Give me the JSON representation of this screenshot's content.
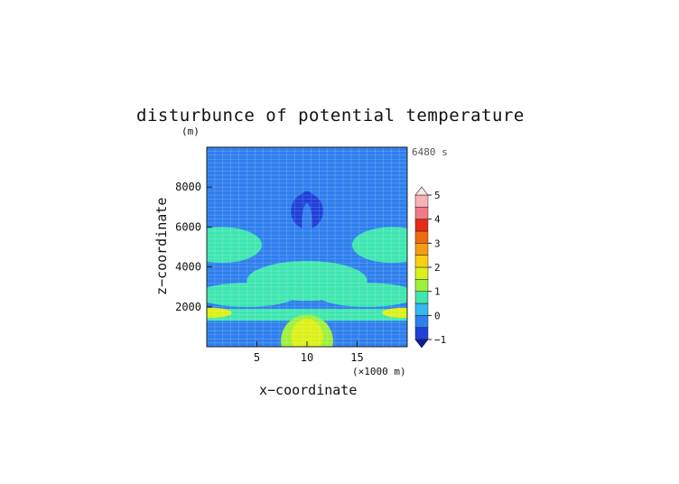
{
  "chart_data": {
    "type": "heatmap",
    "title": "disturbunce of potential temperature",
    "units_label": "(m)",
    "time_label": "6480 s",
    "xlabel": "x−coordinate",
    "ylabel": "z−coordinate",
    "x_unit_label": "(×1000 m)",
    "xlim": [
      0,
      20
    ],
    "ylim": [
      0,
      10000
    ],
    "x_ticks": [
      5,
      10,
      15
    ],
    "x_tick_labels": [
      "5",
      "10",
      "15"
    ],
    "y_ticks": [
      2000,
      4000,
      6000,
      8000
    ],
    "y_tick_labels": [
      "2000",
      "4000",
      "6000",
      "8000"
    ],
    "colorbar": {
      "levels": [
        -1,
        -0.5,
        0,
        0.5,
        1,
        1.5,
        2,
        2.5,
        3,
        3.5,
        4,
        4.5,
        5
      ],
      "tick_values": [
        -1,
        0,
        1,
        2,
        3,
        4,
        5
      ],
      "tick_labels": [
        "−1",
        "0",
        "1",
        "2",
        "3",
        "4",
        "5"
      ],
      "colors": [
        "#1f3fd8",
        "#2f7fee",
        "#33b8f0",
        "#3fe6b0",
        "#9df03c",
        "#dcf018",
        "#f8cf14",
        "#f59c10",
        "#f06a10",
        "#e52a18",
        "#f07a86",
        "#f6b2b6"
      ],
      "extend": "both"
    },
    "grid": true,
    "features": [
      {
        "description": "background level",
        "value": -0.2
      },
      {
        "region": "mid band 4000-6000 m",
        "value": 0.7
      },
      {
        "region": "low band 1000-3500 m",
        "value": 0.7
      },
      {
        "region": "central plume above x=10 near 6000-8000 m",
        "value": -1.0
      },
      {
        "region": "surface maximum at x=10, z<1500 m",
        "value": 1.8
      }
    ]
  }
}
